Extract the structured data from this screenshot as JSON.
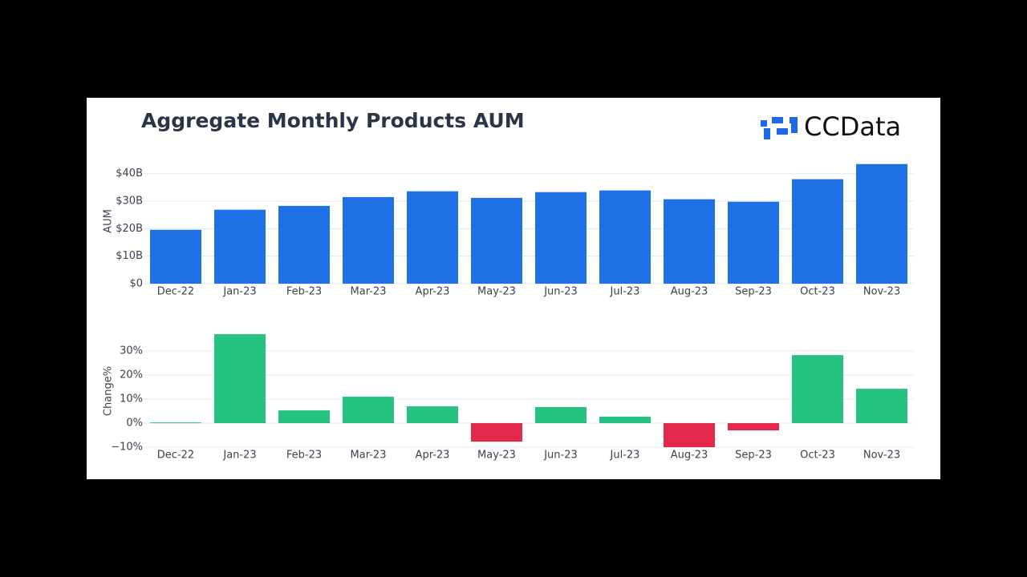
{
  "logo": "CCData",
  "chart_data": [
    {
      "type": "bar",
      "title": "Aggregate Monthly Products AUM",
      "y_label": "AUM",
      "categories": [
        "Dec-22",
        "Jan-23",
        "Feb-23",
        "Mar-23",
        "Apr-23",
        "May-23",
        "Jun-23",
        "Jul-23",
        "Aug-23",
        "Sep-23",
        "Oct-23",
        "Nov-23"
      ],
      "values": [
        19.6,
        26.9,
        28.3,
        31.5,
        33.6,
        31.2,
        33.3,
        33.9,
        30.7,
        29.8,
        38.0,
        43.5
      ],
      "color": "#1f6fe5",
      "ylim": [
        0,
        44
      ],
      "yticks": [
        {
          "value": 0,
          "label": "$0"
        },
        {
          "value": 10,
          "label": "$10B"
        },
        {
          "value": 20,
          "label": "$20B"
        },
        {
          "value": 30,
          "label": "$30B"
        },
        {
          "value": 40,
          "label": "$40B"
        }
      ],
      "grid": true
    },
    {
      "type": "bar",
      "y_label": "Change%",
      "categories": [
        "Dec-22",
        "Jan-23",
        "Feb-23",
        "Mar-23",
        "Apr-23",
        "May-23",
        "Jun-23",
        "Jul-23",
        "Aug-23",
        "Sep-23",
        "Oct-23",
        "Nov-23"
      ],
      "values": [
        0.3,
        37,
        5.3,
        11,
        7,
        -7.7,
        6.7,
        2.7,
        -10,
        -3,
        28.3,
        14.3
      ],
      "color": "#26c281",
      "negative_color": "#e3284b",
      "ylim": [
        -10,
        38
      ],
      "yticks": [
        {
          "value": -10,
          "label": "−10%"
        },
        {
          "value": 0,
          "label": "0%"
        },
        {
          "value": 10,
          "label": "10%"
        },
        {
          "value": 20,
          "label": "20%"
        },
        {
          "value": 30,
          "label": "30%"
        }
      ],
      "grid": true
    }
  ]
}
